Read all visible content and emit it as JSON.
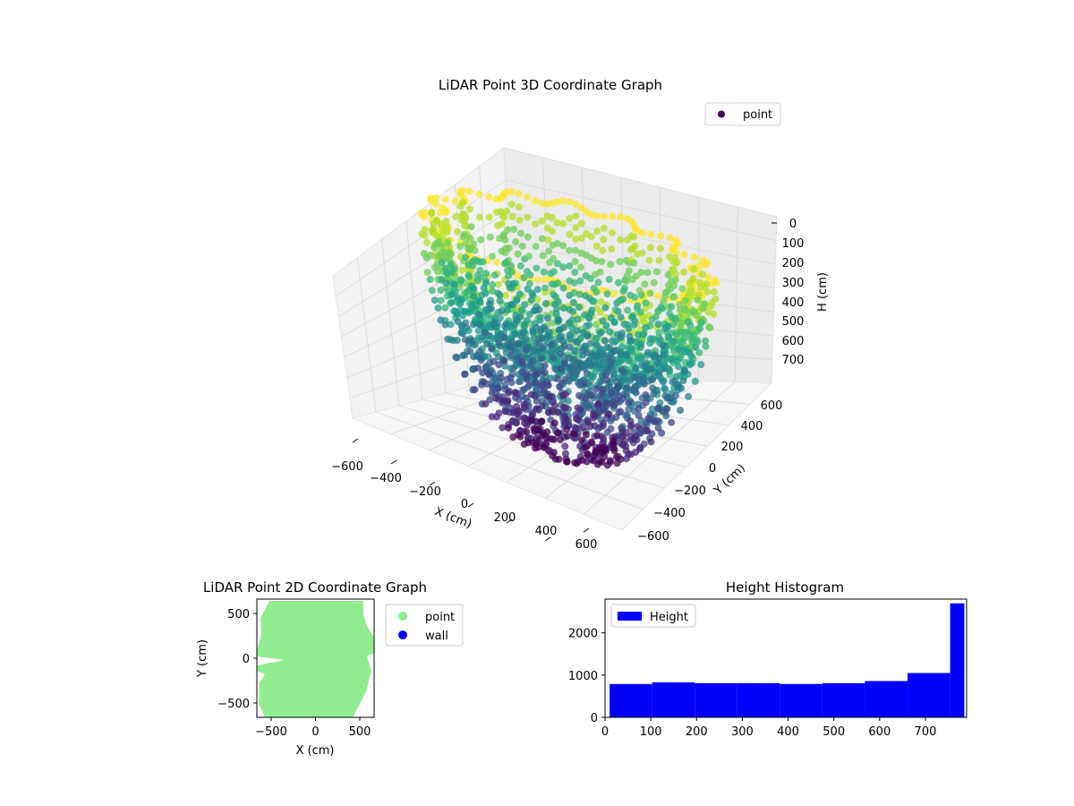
{
  "chart_data": [
    {
      "type": "scatter3d",
      "title": "LiDAR Point 3D Coordinate Graph",
      "xlabel": "X (cm)",
      "ylabel": "Y (cm)",
      "zlabel": "H (cm)",
      "xlim": [
        -650,
        650
      ],
      "ylim": [
        -650,
        650
      ],
      "zlim": [
        0,
        780
      ],
      "z_inverted": true,
      "xticks": [
        "−600",
        "−400",
        "−200",
        "0",
        "200",
        "400",
        "600"
      ],
      "yticks": [
        "−600",
        "−400",
        "−200",
        "0",
        "200",
        "400",
        "600"
      ],
      "zticks": [
        "0",
        "100",
        "200",
        "300",
        "400",
        "500",
        "600",
        "700"
      ],
      "colormap": "viridis",
      "legend": {
        "entries": [
          "point"
        ],
        "placement": "upper-right"
      },
      "series": [
        {
          "name": "point",
          "color": "#440154",
          "shape": "ring of vertical arcs around the origin, radius ~600 cm, heights 0–780 cm"
        }
      ],
      "grid": true
    },
    {
      "type": "scatter",
      "title": "LiDAR Point 2D Coordinate Graph",
      "xlabel": "X (cm)",
      "ylabel": "Y (cm)",
      "xlim": [
        -670,
        670
      ],
      "ylim": [
        -660,
        660
      ],
      "xticks": [
        "−500",
        "0",
        "500"
      ],
      "yticks": [
        "−500",
        "0",
        "500"
      ],
      "legend": {
        "entries": [
          "point",
          "wall"
        ],
        "placement": "outside-right"
      },
      "series": [
        {
          "name": "point",
          "color": "#90ee90",
          "shape": "filled near-circular region of radius ~650 cm with notches at left (-600,±150) and right (600,220)"
        },
        {
          "name": "wall",
          "color": "#0000ff",
          "points": []
        }
      ]
    },
    {
      "type": "bar",
      "title": "Height Histogram",
      "xlabel": "",
      "ylabel": "",
      "xlim": [
        0,
        790
      ],
      "ylim": [
        0,
        2800
      ],
      "xticks": [
        "0",
        "100",
        "200",
        "300",
        "400",
        "500",
        "600",
        "700"
      ],
      "yticks": [
        "0",
        "1000",
        "2000"
      ],
      "legend": {
        "entries": [
          "Height"
        ],
        "placement": "upper-left"
      },
      "color": "#0000ff",
      "bins": [
        {
          "x0": 10,
          "x1": 103,
          "value": 790
        },
        {
          "x0": 103,
          "x1": 196,
          "value": 830
        },
        {
          "x0": 196,
          "x1": 289,
          "value": 810
        },
        {
          "x0": 289,
          "x1": 382,
          "value": 810
        },
        {
          "x0": 382,
          "x1": 475,
          "value": 790
        },
        {
          "x0": 475,
          "x1": 568,
          "value": 810
        },
        {
          "x0": 568,
          "x1": 661,
          "value": 860
        },
        {
          "x0": 661,
          "x1": 754,
          "value": 1050
        },
        {
          "x0": 754,
          "x1": 785,
          "value": 2700
        }
      ]
    }
  ]
}
